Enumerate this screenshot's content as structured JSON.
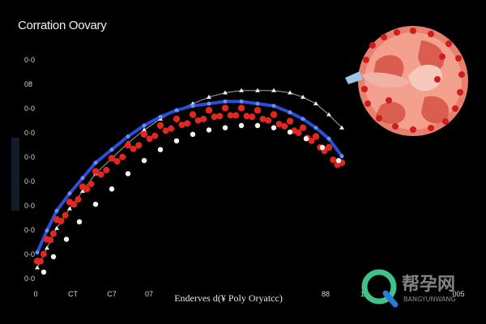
{
  "chart_data": {
    "type": "scatter",
    "title": "Corration Oovary",
    "xlabel": "Enderves d(¥ Poly Oryatcc)",
    "ylabel": "",
    "x_tick_labels": [
      "0",
      "CT",
      "C7",
      "07",
      "",
      "",
      "88",
      "10",
      "005"
    ],
    "y_tick_labels": [
      "0·0",
      "0·0",
      "0·0",
      "0·0",
      "0·0",
      "0·0",
      "0·0",
      "0·0",
      "08",
      "0·0"
    ],
    "xlim": [
      0,
      10
    ],
    "ylim": [
      0,
      10
    ],
    "grid": false,
    "legend": "none",
    "series": [
      {
        "values_x": [
          0.0,
          0.3,
          0.6,
          1.0,
          1.4,
          1.8,
          2.3,
          2.8,
          3.3,
          3.8,
          4.3,
          4.8,
          5.3,
          5.8,
          6.3,
          6.8,
          7.3,
          7.8,
          8.2,
          8.6,
          9.0,
          9.4
        ],
        "values_y": [
          0.5,
          1.4,
          2.3,
          3.2,
          4.0,
          4.8,
          5.5,
          6.2,
          6.8,
          7.3,
          7.7,
          8.0,
          8.3,
          8.5,
          8.6,
          8.6,
          8.6,
          8.5,
          8.3,
          8.0,
          7.5,
          6.9
        ],
        "color": "#f0f0f0",
        "marker": "triangle"
      },
      {
        "values_x": [
          0.0,
          0.3,
          0.6,
          1.0,
          1.4,
          1.8,
          2.3,
          2.8,
          3.3,
          3.8,
          4.3,
          4.8,
          5.3,
          5.8,
          6.3,
          6.8,
          7.3,
          7.8,
          8.2,
          8.6,
          9.0,
          9.4
        ],
        "values_y": [
          1.2,
          2.2,
          3.1,
          3.9,
          4.6,
          5.3,
          5.9,
          6.5,
          7.0,
          7.4,
          7.7,
          7.9,
          8.0,
          8.1,
          8.1,
          8.0,
          7.9,
          7.6,
          7.3,
          6.9,
          6.4,
          5.6
        ],
        "color": "#2a4fd6",
        "marker": "line"
      },
      {
        "values_x": [
          0.0,
          0.3,
          0.6,
          1.0,
          1.4,
          1.8,
          2.3,
          2.8,
          3.3,
          3.8,
          4.3,
          4.8,
          5.3,
          5.8,
          6.3,
          6.8,
          7.3,
          7.8,
          8.2,
          8.6,
          9.0,
          9.4
        ],
        "values_y": [
          0.8,
          1.8,
          2.7,
          3.5,
          4.2,
          4.9,
          5.5,
          6.1,
          6.6,
          7.0,
          7.3,
          7.5,
          7.7,
          7.8,
          7.8,
          7.7,
          7.5,
          7.2,
          6.9,
          6.5,
          6.0,
          5.3
        ],
        "color": "#e0281e",
        "marker": "circle"
      },
      {
        "values_x": [
          0.2,
          0.5,
          0.9,
          1.3,
          1.8,
          2.3,
          2.8,
          3.3,
          3.8,
          4.3,
          4.8,
          5.3,
          5.8,
          6.3,
          6.8,
          7.3,
          7.8,
          8.3,
          8.8,
          9.3
        ],
        "values_y": [
          0.3,
          1.0,
          1.8,
          2.6,
          3.4,
          4.1,
          4.8,
          5.4,
          5.9,
          6.3,
          6.6,
          6.8,
          6.9,
          7.0,
          7.0,
          6.9,
          6.7,
          6.4,
          6.0,
          5.4
        ],
        "color": "#f4f4f4",
        "marker": "circle"
      }
    ],
    "illustration": "kidney-cross-section",
    "accent_colors": {
      "kidney": "#e8806f",
      "kidney_dark": "#c4493c",
      "blood": "#d01c1c",
      "ureter": "#9fc4e8"
    }
  },
  "watermark": {
    "text": "帮孕网",
    "subtext": "BANGYUNWANG",
    "icon": "q-logo-icon"
  }
}
